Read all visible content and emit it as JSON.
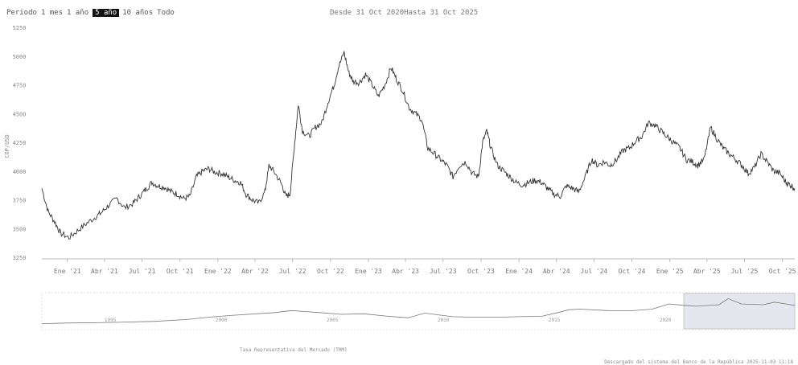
{
  "toolbar": {
    "period_label": "Periodo",
    "buttons": [
      {
        "label": "1 mes",
        "selected": false
      },
      {
        "label": "1 año",
        "selected": false
      },
      {
        "label": "5 año",
        "selected": true
      },
      {
        "label": "10 años",
        "selected": false
      },
      {
        "label": "Todo",
        "selected": false
      }
    ]
  },
  "range_info": "Desde 31 Oct 2020Hasta 31 Oct 2025",
  "navigator": {
    "year_labels": [
      "1995",
      "2000",
      "2005",
      "2010",
      "2015",
      "2020"
    ],
    "series_label": "Tasa Representativa del Mercado (TRM)"
  },
  "footer": {
    "credit": "Descargado del sistema del Banco de la República 2025-11-03 11:18"
  },
  "chart_data": {
    "type": "line",
    "title": "",
    "xlabel": "",
    "ylabel": "COP/USD",
    "ylim": [
      3250,
      5250
    ],
    "xlim": [
      "2020-10-31",
      "2025-10-31"
    ],
    "y_ticks": [
      3250,
      3500,
      3750,
      4000,
      4250,
      4500,
      4750,
      5000,
      5250
    ],
    "x_tick_labels": [
      {
        "date": "2021-01-01",
        "label": "Ene '21"
      },
      {
        "date": "2021-04-01",
        "label": "Abr '21"
      },
      {
        "date": "2021-07-01",
        "label": "Jul '21"
      },
      {
        "date": "2021-10-01",
        "label": "Oct '21"
      },
      {
        "date": "2022-01-01",
        "label": "Ene '22"
      },
      {
        "date": "2022-04-01",
        "label": "Abr '22"
      },
      {
        "date": "2022-07-01",
        "label": "Jul '22"
      },
      {
        "date": "2022-10-01",
        "label": "Oct '22"
      },
      {
        "date": "2023-01-01",
        "label": "Ene '23"
      },
      {
        "date": "2023-04-01",
        "label": "Abr '23"
      },
      {
        "date": "2023-07-01",
        "label": "Jul '23"
      },
      {
        "date": "2023-10-01",
        "label": "Oct '23"
      },
      {
        "date": "2024-01-01",
        "label": "Ene '24"
      },
      {
        "date": "2024-04-01",
        "label": "Abr '24"
      },
      {
        "date": "2024-07-01",
        "label": "Jul '24"
      },
      {
        "date": "2024-10-01",
        "label": "Oct '24"
      },
      {
        "date": "2025-01-01",
        "label": "Ene '25"
      },
      {
        "date": "2025-04-01",
        "label": "Abr '25"
      },
      {
        "date": "2025-07-01",
        "label": "Jul '25"
      },
      {
        "date": "2025-10-01",
        "label": "Oct '25"
      }
    ],
    "grid": false,
    "series": [
      {
        "points": [
          [
            "2020-10-31",
            3850
          ],
          [
            "2020-11-15",
            3650
          ],
          [
            "2020-12-01",
            3560
          ],
          [
            "2020-12-15",
            3460
          ],
          [
            "2021-01-05",
            3420
          ],
          [
            "2021-01-25",
            3480
          ],
          [
            "2021-02-15",
            3540
          ],
          [
            "2021-03-10",
            3600
          ],
          [
            "2021-03-25",
            3640
          ],
          [
            "2021-04-10",
            3700
          ],
          [
            "2021-05-01",
            3760
          ],
          [
            "2021-05-20",
            3680
          ],
          [
            "2021-06-10",
            3720
          ],
          [
            "2021-06-25",
            3780
          ],
          [
            "2021-07-10",
            3840
          ],
          [
            "2021-07-25",
            3900
          ],
          [
            "2021-08-10",
            3870
          ],
          [
            "2021-08-25",
            3860
          ],
          [
            "2021-09-10",
            3820
          ],
          [
            "2021-09-25",
            3800
          ],
          [
            "2021-10-10",
            3760
          ],
          [
            "2021-10-25",
            3780
          ],
          [
            "2021-11-10",
            3950
          ],
          [
            "2021-11-25",
            4000
          ],
          [
            "2021-12-10",
            4020
          ],
          [
            "2021-12-25",
            3990
          ],
          [
            "2022-01-10",
            3980
          ],
          [
            "2022-01-25",
            3950
          ],
          [
            "2022-02-10",
            3920
          ],
          [
            "2022-02-25",
            3900
          ],
          [
            "2022-03-10",
            3800
          ],
          [
            "2022-03-25",
            3750
          ],
          [
            "2022-04-10",
            3720
          ],
          [
            "2022-04-25",
            3820
          ],
          [
            "2022-05-05",
            4050
          ],
          [
            "2022-05-20",
            3980
          ],
          [
            "2022-06-05",
            3880
          ],
          [
            "2022-06-15",
            3780
          ],
          [
            "2022-06-25",
            3800
          ],
          [
            "2022-07-05",
            4200
          ],
          [
            "2022-07-15",
            4580
          ],
          [
            "2022-07-25",
            4350
          ],
          [
            "2022-08-10",
            4300
          ],
          [
            "2022-08-25",
            4380
          ],
          [
            "2022-09-10",
            4420
          ],
          [
            "2022-09-25",
            4600
          ],
          [
            "2022-10-10",
            4750
          ],
          [
            "2022-10-20",
            4900
          ],
          [
            "2022-11-03",
            5030
          ],
          [
            "2022-11-15",
            4850
          ],
          [
            "2022-11-25",
            4780
          ],
          [
            "2022-12-10",
            4770
          ],
          [
            "2022-12-25",
            4840
          ],
          [
            "2023-01-10",
            4750
          ],
          [
            "2023-01-25",
            4650
          ],
          [
            "2023-02-10",
            4750
          ],
          [
            "2023-02-25",
            4900
          ],
          [
            "2023-03-10",
            4800
          ],
          [
            "2023-03-25",
            4700
          ],
          [
            "2023-04-10",
            4550
          ],
          [
            "2023-04-25",
            4500
          ],
          [
            "2023-05-10",
            4450
          ],
          [
            "2023-05-25",
            4200
          ],
          [
            "2023-06-10",
            4150
          ],
          [
            "2023-06-25",
            4100
          ],
          [
            "2023-07-10",
            4050
          ],
          [
            "2023-07-25",
            3950
          ],
          [
            "2023-08-10",
            4050
          ],
          [
            "2023-08-25",
            4080
          ],
          [
            "2023-09-10",
            3980
          ],
          [
            "2023-09-25",
            3950
          ],
          [
            "2023-10-05",
            4250
          ],
          [
            "2023-10-15",
            4350
          ],
          [
            "2023-10-25",
            4200
          ],
          [
            "2023-11-10",
            4050
          ],
          [
            "2023-11-25",
            4000
          ],
          [
            "2023-12-10",
            3950
          ],
          [
            "2023-12-25",
            3900
          ],
          [
            "2024-01-10",
            3880
          ],
          [
            "2024-01-25",
            3900
          ],
          [
            "2024-02-10",
            3920
          ],
          [
            "2024-02-25",
            3900
          ],
          [
            "2024-03-10",
            3850
          ],
          [
            "2024-03-25",
            3800
          ],
          [
            "2024-04-10",
            3780
          ],
          [
            "2024-04-25",
            3870
          ],
          [
            "2024-05-10",
            3850
          ],
          [
            "2024-05-25",
            3820
          ],
          [
            "2024-06-10",
            3950
          ],
          [
            "2024-06-25",
            4100
          ],
          [
            "2024-07-10",
            4050
          ],
          [
            "2024-07-25",
            4080
          ],
          [
            "2024-08-10",
            4050
          ],
          [
            "2024-08-25",
            4100
          ],
          [
            "2024-09-10",
            4180
          ],
          [
            "2024-09-25",
            4200
          ],
          [
            "2024-10-10",
            4260
          ],
          [
            "2024-10-25",
            4300
          ],
          [
            "2024-11-10",
            4420
          ],
          [
            "2024-11-25",
            4400
          ],
          [
            "2024-12-10",
            4350
          ],
          [
            "2024-12-25",
            4300
          ],
          [
            "2025-01-10",
            4250
          ],
          [
            "2025-01-25",
            4200
          ],
          [
            "2025-02-10",
            4100
          ],
          [
            "2025-02-25",
            4080
          ],
          [
            "2025-03-10",
            4050
          ],
          [
            "2025-03-25",
            4100
          ],
          [
            "2025-04-10",
            4380
          ],
          [
            "2025-04-25",
            4280
          ],
          [
            "2025-05-10",
            4200
          ],
          [
            "2025-05-25",
            4150
          ],
          [
            "2025-06-10",
            4100
          ],
          [
            "2025-06-25",
            4050
          ],
          [
            "2025-07-10",
            3980
          ],
          [
            "2025-07-25",
            4030
          ],
          [
            "2025-08-10",
            4150
          ],
          [
            "2025-08-25",
            4080
          ],
          [
            "2025-09-10",
            4000
          ],
          [
            "2025-09-25",
            3980
          ],
          [
            "2025-10-10",
            3900
          ],
          [
            "2025-10-20",
            3880
          ],
          [
            "2025-10-31",
            3850
          ]
        ]
      }
    ],
    "navigator_series": [
      [
        "1991-12-01",
        700
      ],
      [
        "1993-01-01",
        800
      ],
      [
        "1995-01-01",
        900
      ],
      [
        "1997-01-01",
        1100
      ],
      [
        "1998-06-01",
        1400
      ],
      [
        "1999-06-01",
        1800
      ],
      [
        "2000-06-01",
        2100
      ],
      [
        "2002-06-01",
        2600
      ],
      [
        "2003-03-01",
        2950
      ],
      [
        "2004-06-01",
        2600
      ],
      [
        "2005-06-01",
        2300
      ],
      [
        "2006-06-01",
        2400
      ],
      [
        "2007-06-01",
        2000
      ],
      [
        "2008-06-01",
        1700
      ],
      [
        "2009-03-01",
        2500
      ],
      [
        "2010-06-01",
        1900
      ],
      [
        "2011-06-01",
        1800
      ],
      [
        "2012-06-01",
        1800
      ],
      [
        "2013-06-01",
        1900
      ],
      [
        "2014-06-01",
        1950
      ],
      [
        "2015-03-01",
        2600
      ],
      [
        "2015-09-01",
        3100
      ],
      [
        "2016-03-01",
        3200
      ],
      [
        "2017-06-01",
        2950
      ],
      [
        "2018-06-01",
        2900
      ],
      [
        "2019-06-01",
        3200
      ],
      [
        "2020-03-01",
        4100
      ],
      [
        "2020-10-31",
        3850
      ],
      [
        "2021-06-01",
        3700
      ],
      [
        "2022-06-01",
        3950
      ],
      [
        "2022-11-01",
        5000
      ],
      [
        "2023-06-01",
        4100
      ],
      [
        "2024-06-01",
        3950
      ],
      [
        "2024-12-01",
        4400
      ],
      [
        "2025-06-01",
        4100
      ],
      [
        "2025-10-31",
        3850
      ]
    ]
  }
}
